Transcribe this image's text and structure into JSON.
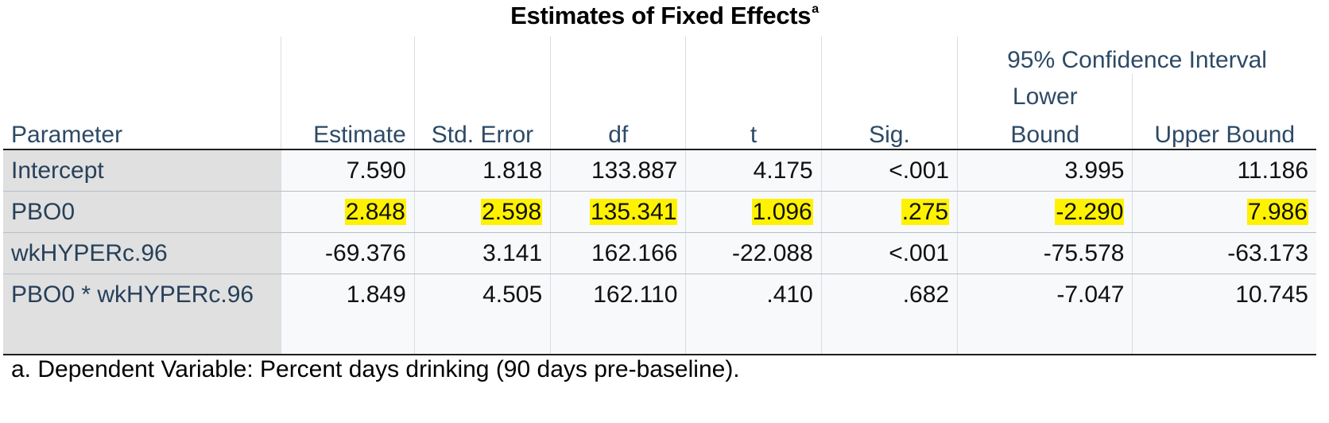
{
  "title": "Estimates of Fixed Effects",
  "title_superscript": "a",
  "header": {
    "parameter": "Parameter",
    "estimate": "Estimate",
    "std_error": "Std. Error",
    "df": "df",
    "t": "t",
    "sig": "Sig.",
    "ci_group": "95% Confidence Interval",
    "lower_1": "Lower",
    "lower_2": "Bound",
    "upper": "Upper Bound"
  },
  "rows": [
    {
      "parameter": "Intercept",
      "estimate": "7.590",
      "std_error": "1.818",
      "df": "133.887",
      "t": "4.175",
      "sig": "<.001",
      "lower": "3.995",
      "upper": "11.186",
      "highlighted": false
    },
    {
      "parameter": "PBO0",
      "estimate": "2.848",
      "std_error": "2.598",
      "df": "135.341",
      "t": "1.096",
      "sig": ".275",
      "lower": "-2.290",
      "upper": "7.986",
      "highlighted": true
    },
    {
      "parameter": "wkHYPERc.96",
      "estimate": "-69.376",
      "std_error": "3.141",
      "df": "162.166",
      "t": "-22.088",
      "sig": "<.001",
      "lower": "-75.578",
      "upper": "-63.173",
      "highlighted": false
    },
    {
      "parameter": "PBO0 * wkHYPERc.96",
      "estimate": "1.849",
      "std_error": "4.505",
      "df": "162.110",
      "t": ".410",
      "sig": ".682",
      "lower": "-7.047",
      "upper": "10.745",
      "highlighted": false
    }
  ],
  "footnote": "a. Dependent Variable: Percent days drinking (90 days pre-baseline).",
  "colors": {
    "highlight": "#fff200",
    "label_bg": "#e0e0e0",
    "header_text": "#2c4a66"
  }
}
